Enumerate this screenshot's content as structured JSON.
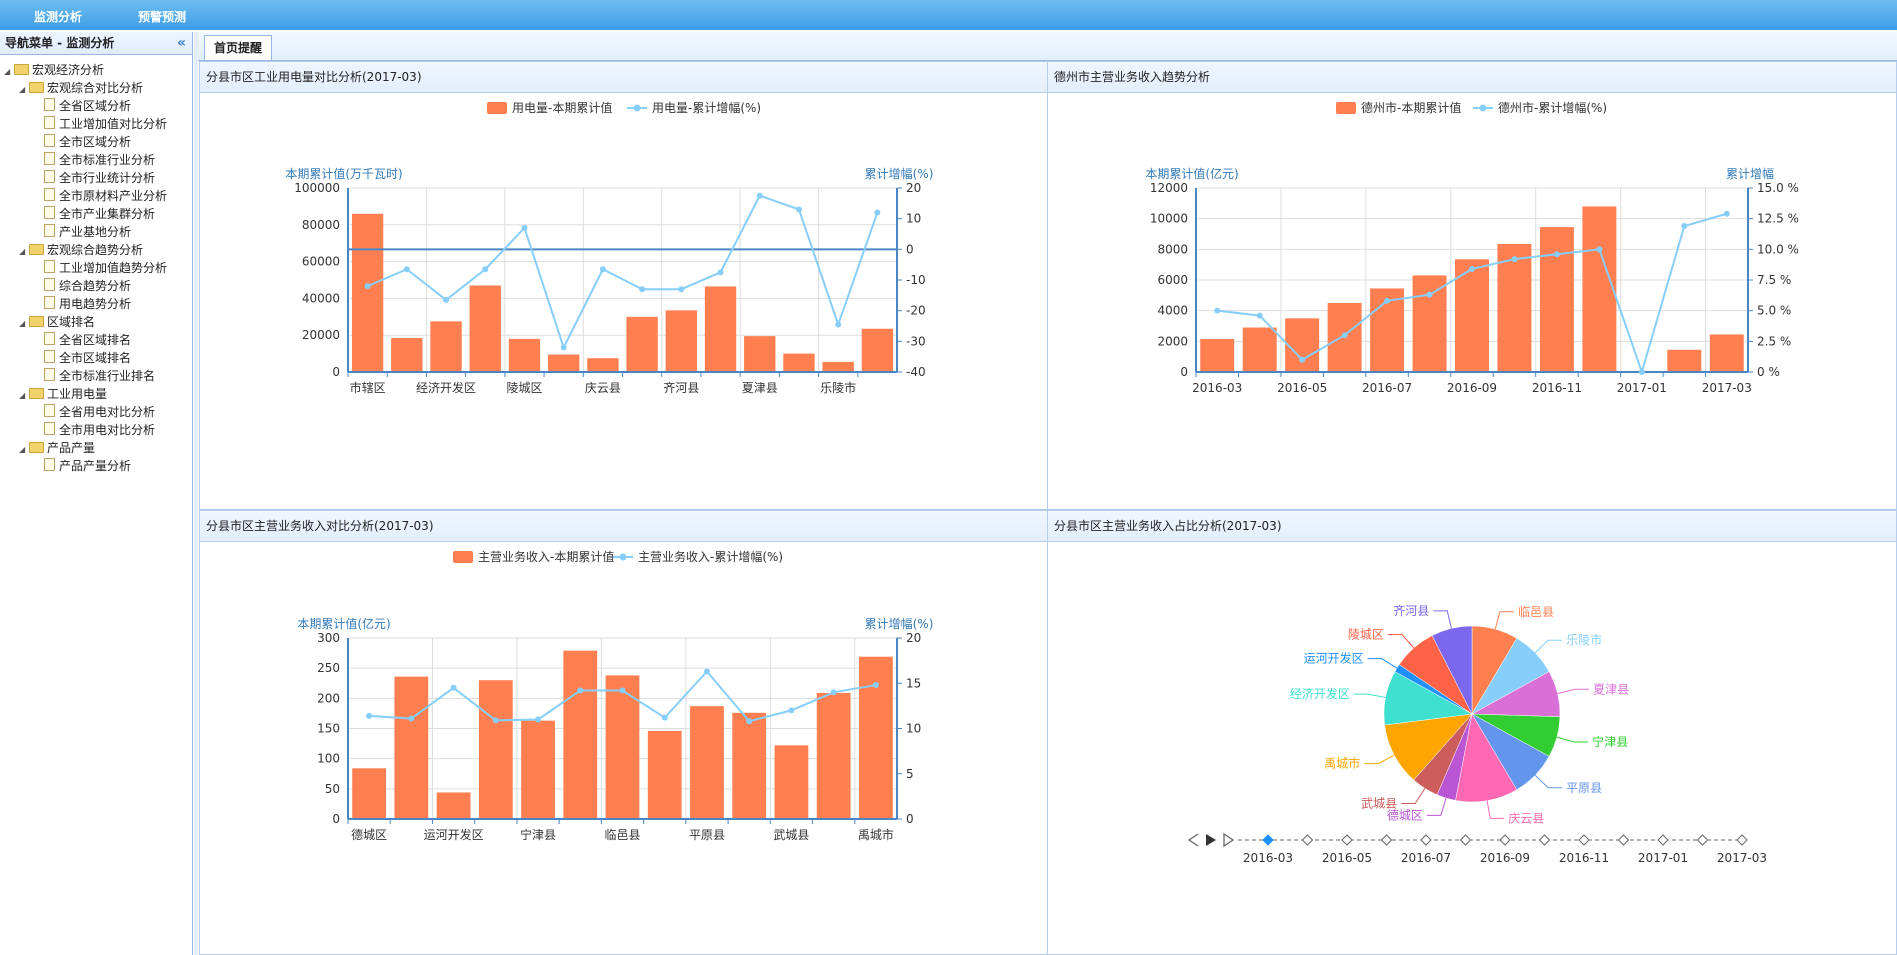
{
  "topbar": {
    "nav1": "监测分析",
    "nav2": "预警预测"
  },
  "sidebar": {
    "title": "导航菜单 - 监测分析",
    "collapse_icon": "«",
    "tree": [
      {
        "label": "宏观经济分析",
        "level": 0,
        "type": "folder"
      },
      {
        "label": "宏观综合对比分析",
        "level": 1,
        "type": "folder"
      },
      {
        "label": "全省区域分析",
        "level": 2,
        "type": "file"
      },
      {
        "label": "工业增加值对比分析",
        "level": 2,
        "type": "file"
      },
      {
        "label": "全市区域分析",
        "level": 2,
        "type": "file"
      },
      {
        "label": "全市标准行业分析",
        "level": 2,
        "type": "file"
      },
      {
        "label": "全市行业统计分析",
        "level": 2,
        "type": "file"
      },
      {
        "label": "全市原材料产业分析",
        "level": 2,
        "type": "file"
      },
      {
        "label": "全市产业集群分析",
        "level": 2,
        "type": "file"
      },
      {
        "label": "产业基地分析",
        "level": 2,
        "type": "file"
      },
      {
        "label": "宏观综合趋势分析",
        "level": 1,
        "type": "folder"
      },
      {
        "label": "工业增加值趋势分析",
        "level": 2,
        "type": "file"
      },
      {
        "label": "综合趋势分析",
        "level": 2,
        "type": "file"
      },
      {
        "label": "用电趋势分析",
        "level": 2,
        "type": "file"
      },
      {
        "label": "区域排名",
        "level": 1,
        "type": "folder"
      },
      {
        "label": "全省区域排名",
        "level": 2,
        "type": "file"
      },
      {
        "label": "全市区域排名",
        "level": 2,
        "type": "file"
      },
      {
        "label": "全市标准行业排名",
        "level": 2,
        "type": "file"
      },
      {
        "label": "工业用电量",
        "level": 1,
        "type": "folder"
      },
      {
        "label": "全省用电对比分析",
        "level": 2,
        "type": "file"
      },
      {
        "label": "全市用电对比分析",
        "level": 2,
        "type": "file"
      },
      {
        "label": "产品产量",
        "level": 1,
        "type": "folder"
      },
      {
        "label": "产品产量分析",
        "level": 2,
        "type": "file"
      }
    ]
  },
  "tabs": {
    "home": "首页提醒"
  },
  "colors": {
    "bar": "#ff7f50",
    "line": "#87cefa",
    "axis": "#4a86c5",
    "grid": "#dddddd"
  },
  "panels": {
    "p1": {
      "title": "分县市区工业用电量对比分析(2017-03)"
    },
    "p2": {
      "title": "德州市主营业务收入趋势分析"
    },
    "p3": {
      "title": "分县市区主营业务收入对比分析(2017-03)"
    },
    "p4": {
      "title": "分县市区主营业务收入占比分析(2017-03)"
    }
  },
  "chart_data": [
    {
      "id": "c1",
      "type": "bar",
      "legend": [
        "用电量-本期累计值",
        "用电量-累计增幅(%)"
      ],
      "ylabel_left": "本期累计值(万千瓦时)",
      "ylabel_right": "累计增幅(%)",
      "ylim_left": [
        0,
        100000
      ],
      "yticks_left": [
        "0",
        "20000",
        "40000",
        "60000",
        "80000",
        "100000"
      ],
      "ylim_right": [
        -40,
        20
      ],
      "yticks_right": [
        "-40",
        "-30",
        "-20",
        "-10",
        "0",
        "10",
        "20"
      ],
      "zero_line": 0,
      "categories": [
        "市辖区",
        "",
        "经济开发区",
        "",
        "陵城区",
        "",
        "庆云县",
        "",
        "齐河县",
        "",
        "夏津县",
        "",
        "乐陵市",
        ""
      ],
      "series": [
        {
          "name": "用电量-本期累计值",
          "kind": "bar",
          "values": [
            86000,
            18500,
            27500,
            47000,
            18000,
            9500,
            7500,
            30000,
            33500,
            46500,
            19500,
            10000,
            5500,
            23500
          ]
        },
        {
          "name": "用电量-累计增幅(%)",
          "kind": "line",
          "values": [
            -12,
            -6.5,
            -16.5,
            -6.5,
            7,
            -32,
            -6.5,
            -13,
            -13,
            -7.5,
            17.5,
            13,
            -24.5,
            12
          ]
        }
      ]
    },
    {
      "id": "c2",
      "type": "bar",
      "legend": [
        "德州市-本期累计值",
        "德州市-累计增幅(%)"
      ],
      "ylabel_left": "本期累计值(亿元)",
      "ylabel_right": "累计增幅",
      "ylim_left": [
        0,
        12000
      ],
      "yticks_left": [
        "0",
        "2000",
        "4000",
        "6000",
        "8000",
        "10000",
        "12000"
      ],
      "ylim_right": [
        0,
        15
      ],
      "yticks_right": [
        "0 %",
        "2.5 %",
        "5.0 %",
        "7.5 %",
        "10.0 %",
        "12.5 %",
        "15.0 %"
      ],
      "categories": [
        "2016-03",
        "",
        "2016-05",
        "",
        "2016-07",
        "",
        "2016-09",
        "",
        "2016-11",
        "",
        "2017-01",
        "",
        "2017-03"
      ],
      "series": [
        {
          "name": "德州市-本期累计值",
          "kind": "bar",
          "values": [
            2150,
            2900,
            3500,
            4500,
            5450,
            6300,
            7350,
            8350,
            9450,
            10800,
            null,
            1450,
            2450
          ]
        },
        {
          "name": "德州市-累计增幅(%)",
          "kind": "line",
          "values": [
            5,
            4.6,
            1,
            3,
            5.8,
            6.3,
            8.4,
            9.2,
            9.6,
            10,
            0,
            11.9,
            12.9
          ]
        }
      ]
    },
    {
      "id": "c3",
      "type": "bar",
      "legend": [
        "主营业务收入-本期累计值",
        "主营业务收入-累计增幅(%)"
      ],
      "ylabel_left": "本期累计值(亿元)",
      "ylabel_right": "累计增幅(%)",
      "ylim_left": [
        0,
        300
      ],
      "yticks_left": [
        "0",
        "50",
        "100",
        "150",
        "200",
        "250",
        "300"
      ],
      "ylim_right": [
        0,
        20
      ],
      "yticks_right": [
        "0",
        "5",
        "10",
        "15",
        "20"
      ],
      "categories": [
        "德城区",
        "",
        "运河开发区",
        "",
        "宁津县",
        "",
        "临邑县",
        "",
        "平原县",
        "",
        "武城县",
        "",
        "禹城市"
      ],
      "series": [
        {
          "name": "主营业务收入-本期累计值",
          "kind": "bar",
          "values": [
            84,
            236,
            44,
            230,
            163,
            279,
            238,
            146,
            187,
            176,
            122,
            209,
            269
          ]
        },
        {
          "name": "主营业务收入-累计增幅(%)",
          "kind": "line",
          "values": [
            11.4,
            11.1,
            14.5,
            10.9,
            11,
            14.2,
            14.2,
            11.2,
            16.3,
            10.8,
            12,
            14,
            14.8
          ]
        }
      ]
    },
    {
      "id": "c4",
      "type": "pie",
      "slices": [
        {
          "label": "临邑县",
          "value": 8.5,
          "color": "#ff7f50"
        },
        {
          "label": "乐陵市",
          "value": 8.5,
          "color": "#87cefa"
        },
        {
          "label": "夏津县",
          "value": 8.5,
          "color": "#da70d6"
        },
        {
          "label": "宁津县",
          "value": 7.5,
          "color": "#32cd32"
        },
        {
          "label": "平原县",
          "value": 8.5,
          "color": "#6495ed"
        },
        {
          "label": "庆云县",
          "value": 11.5,
          "color": "#ff69b4"
        },
        {
          "label": "德城区",
          "value": 3.5,
          "color": "#ba55d3"
        },
        {
          "label": "武城县",
          "value": 5,
          "color": "#cd5c5c"
        },
        {
          "label": "禹城市",
          "value": 11.5,
          "color": "#ffa500"
        },
        {
          "label": "经济开发区",
          "value": 10,
          "color": "#40e0d0"
        },
        {
          "label": "运河开发区",
          "value": 1.5,
          "color": "#1e90ff"
        },
        {
          "label": "陵城区",
          "value": 8,
          "color": "#ff6347"
        },
        {
          "label": "齐河县",
          "value": 7.5,
          "color": "#7b68ee"
        }
      ],
      "timeline": [
        "2016-03",
        "2016-05",
        "2016-07",
        "2016-09",
        "2016-11",
        "2017-01",
        "2017-03"
      ],
      "timeline_points": 13,
      "timeline_current": 0
    }
  ]
}
